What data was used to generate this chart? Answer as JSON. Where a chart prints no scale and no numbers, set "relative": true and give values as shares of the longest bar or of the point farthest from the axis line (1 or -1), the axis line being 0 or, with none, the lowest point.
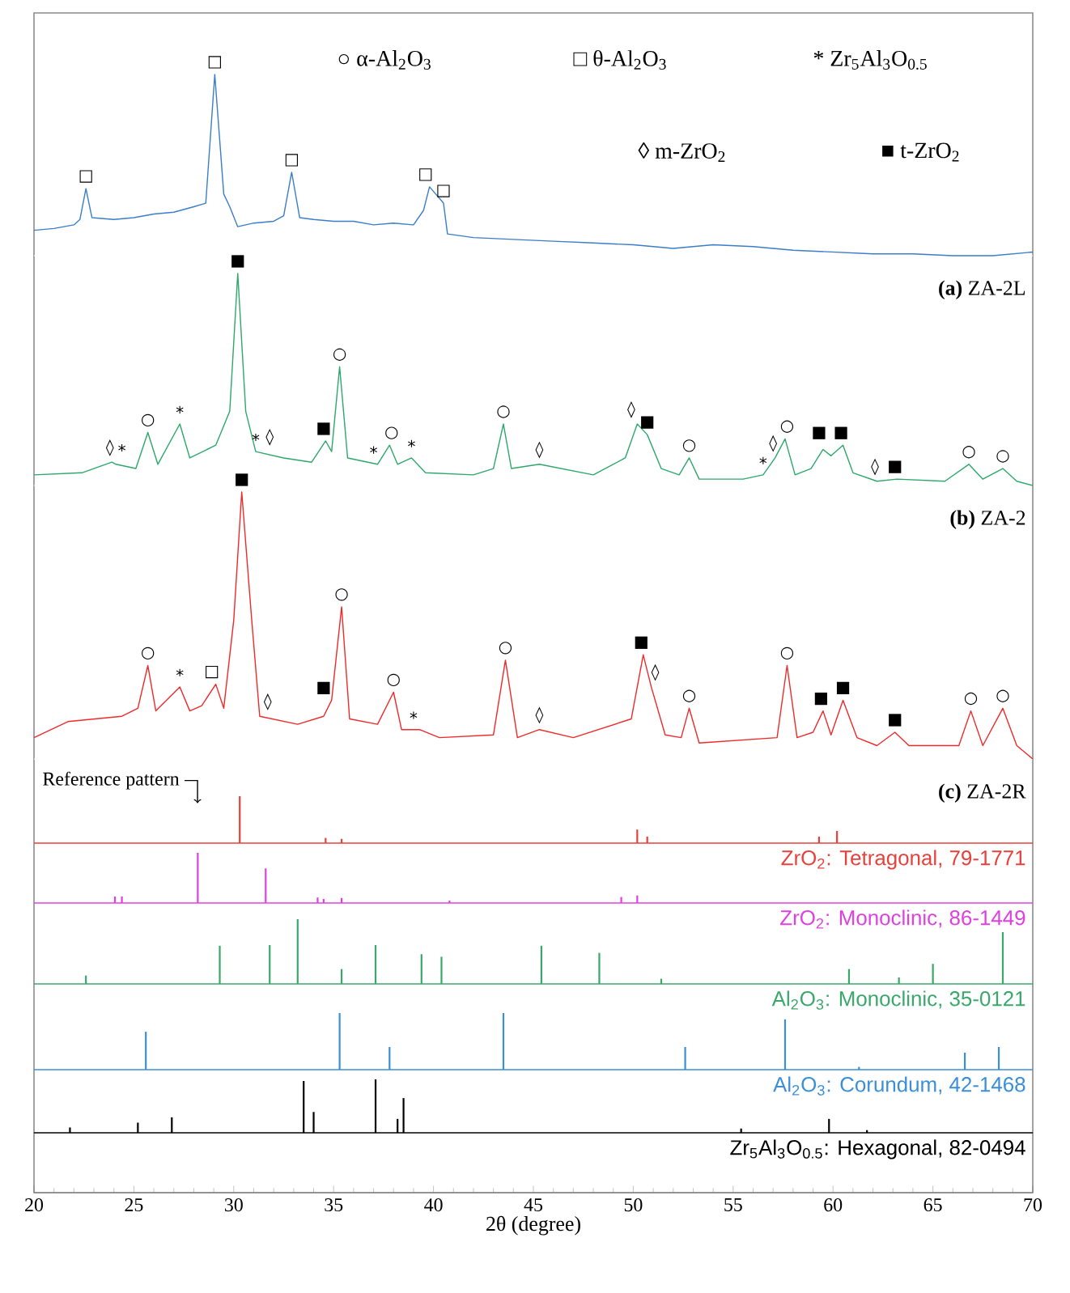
{
  "chart_data": [
    {
      "type": "line",
      "title": "**(a)** ZA-2L",
      "relative": true,
      "xlim": [
        20,
        70
      ],
      "tick_labels": false,
      "color": "#3a7dc9",
      "x": [
        20,
        21,
        22,
        22.3,
        22.6,
        22.9,
        24,
        25,
        26,
        27,
        28,
        28.6,
        29.05,
        29.5,
        29.8,
        30.2,
        31,
        32,
        32.5,
        32.9,
        33.3,
        34,
        35,
        36,
        37,
        38,
        39,
        39.5,
        39.8,
        40.5,
        40.7,
        42,
        44,
        46,
        48,
        50,
        52,
        54,
        56,
        58,
        60,
        62,
        64,
        66,
        68,
        70
      ],
      "values": [
        0.14,
        0.15,
        0.17,
        0.2,
        0.37,
        0.21,
        0.2,
        0.21,
        0.23,
        0.24,
        0.27,
        0.29,
        1,
        0.34,
        0.27,
        0.16,
        0.18,
        0.19,
        0.22,
        0.46,
        0.21,
        0.2,
        0.19,
        0.19,
        0.17,
        0.18,
        0.17,
        0.25,
        0.38,
        0.29,
        0.12,
        0.1,
        0.09,
        0.08,
        0.07,
        0.06,
        0.04,
        0.06,
        0.05,
        0.03,
        0.02,
        0.01,
        0.01,
        0,
        0,
        0.02
      ],
      "annotations": [
        "○ α-Al$_{2}$O$_{3}$",
        "□ θ-Al$_{2}$O$_{3}$",
        "* Zr$_{5}$Al$_{3}$O$_{0.5}$",
        "◊ m-ZrO$_{2}$",
        "■ t-ZrO$_{2}$",
        {
          "text": "□",
          "x": 22.6,
          "y": 0.37
        },
        {
          "text": "□",
          "x": 29.05,
          "y": 1
        },
        {
          "text": "□",
          "x": 32.9,
          "y": 0.46
        },
        {
          "text": "□",
          "x": 39.6,
          "y": 0.38
        },
        {
          "text": "□",
          "x": 40.5,
          "y": 0.29
        }
      ]
    },
    {
      "type": "line",
      "title": "**(b)** ZA-2",
      "relative": true,
      "xlim": [
        20,
        70
      ],
      "tick_labels": false,
      "color": "#2ca86a",
      "x": [
        20,
        22.4,
        23.9,
        24.1,
        25.1,
        25.7,
        26.2,
        27.3,
        27.8,
        29.1,
        29.8,
        30.2,
        30.6,
        31.1,
        32.5,
        33.9,
        34.6,
        34.9,
        35.3,
        35.7,
        37.2,
        37.8,
        38.2,
        38.9,
        39.6,
        42,
        43,
        43.5,
        43.9,
        45.3,
        48,
        49.6,
        50.2,
        50.7,
        51.4,
        52.3,
        52.8,
        53.3,
        55.5,
        56.5,
        57.1,
        57.6,
        58.1,
        58.9,
        59.5,
        59.9,
        60.5,
        61,
        62.2,
        63.2,
        65.6,
        66.8,
        67.5,
        68.5,
        69.2,
        70
      ],
      "values": [
        0.05,
        0.06,
        0.11,
        0.1,
        0.08,
        0.25,
        0.1,
        0.29,
        0.13,
        0.19,
        0.35,
        1,
        0.35,
        0.16,
        0.13,
        0.11,
        0.21,
        0.16,
        0.56,
        0.13,
        0.1,
        0.19,
        0.1,
        0.13,
        0.06,
        0.05,
        0.08,
        0.29,
        0.08,
        0.1,
        0.05,
        0.13,
        0.29,
        0.24,
        0.08,
        0.05,
        0.13,
        0.03,
        0.03,
        0.05,
        0.13,
        0.22,
        0.05,
        0.08,
        0.17,
        0.14,
        0.19,
        0.06,
        0.02,
        0.03,
        0.02,
        0.1,
        0.03,
        0.08,
        0.02,
        0
      ],
      "annotations": [
        {
          "text": "◊",
          "x": 23.8,
          "y": 0.11
        },
        {
          "text": "*",
          "x": 24.4,
          "y": 0.11
        },
        {
          "text": "○",
          "x": 25.7,
          "y": 0.25
        },
        {
          "text": "*",
          "x": 27.3,
          "y": 0.29
        },
        {
          "text": "■",
          "x": 30.2,
          "y": 1
        },
        {
          "text": "*",
          "x": 31.1,
          "y": 0.16
        },
        {
          "text": "◊",
          "x": 31.8,
          "y": 0.16
        },
        {
          "text": "■",
          "x": 34.5,
          "y": 0.21
        },
        {
          "text": "○",
          "x": 35.3,
          "y": 0.56
        },
        {
          "text": "*",
          "x": 37.0,
          "y": 0.1
        },
        {
          "text": "○",
          "x": 37.9,
          "y": 0.19
        },
        {
          "text": "*",
          "x": 38.9,
          "y": 0.13
        },
        {
          "text": "○",
          "x": 43.5,
          "y": 0.29
        },
        {
          "text": "◊",
          "x": 45.3,
          "y": 0.1
        },
        {
          "text": "◊",
          "x": 49.9,
          "y": 0.29
        },
        {
          "text": "■",
          "x": 50.7,
          "y": 0.24
        },
        {
          "text": "○",
          "x": 52.8,
          "y": 0.13
        },
        {
          "text": "*",
          "x": 56.5,
          "y": 0.05
        },
        {
          "text": "◊",
          "x": 57.0,
          "y": 0.13
        },
        {
          "text": "○",
          "x": 57.7,
          "y": 0.22
        },
        {
          "text": "■",
          "x": 59.3,
          "y": 0.19
        },
        {
          "text": "■",
          "x": 60.4,
          "y": 0.19
        },
        {
          "text": "◊",
          "x": 62.1,
          "y": 0.02
        },
        {
          "text": "■",
          "x": 63.1,
          "y": 0.03
        },
        {
          "text": "○",
          "x": 66.8,
          "y": 0.1
        },
        {
          "text": "○",
          "x": 68.5,
          "y": 0.08
        }
      ]
    },
    {
      "type": "line",
      "title": "**(c)** ZA-2R",
      "relative": true,
      "xlim": [
        20,
        70
      ],
      "tick_labels": false,
      "color": "#ee2a2a",
      "x": [
        20,
        21.7,
        24.4,
        25.2,
        25.7,
        26.1,
        27.3,
        27.8,
        28.4,
        29.1,
        29.5,
        30,
        30.4,
        30.9,
        31.3,
        33.2,
        34.5,
        34.9,
        35.4,
        35.8,
        37.2,
        38,
        38.4,
        39.3,
        40.3,
        43,
        43.6,
        44.2,
        45.3,
        47,
        49.9,
        50.5,
        50.9,
        51.6,
        52.4,
        52.8,
        53.3,
        57.2,
        57.7,
        58.2,
        59,
        59.5,
        59.9,
        60.5,
        61.2,
        62.2,
        63.1,
        63.8,
        66.3,
        66.9,
        67.5,
        68.5,
        69.2,
        70
      ],
      "values": [
        0.08,
        0.14,
        0.16,
        0.19,
        0.35,
        0.18,
        0.27,
        0.18,
        0.2,
        0.28,
        0.19,
        0.52,
        1,
        0.52,
        0.16,
        0.13,
        0.16,
        0.22,
        0.57,
        0.15,
        0.13,
        0.25,
        0.11,
        0.11,
        0.08,
        0.09,
        0.37,
        0.08,
        0.11,
        0.08,
        0.15,
        0.39,
        0.27,
        0.09,
        0.08,
        0.19,
        0.06,
        0.08,
        0.35,
        0.08,
        0.1,
        0.18,
        0.09,
        0.22,
        0.08,
        0.05,
        0.1,
        0.05,
        0.05,
        0.18,
        0.05,
        0.19,
        0.05,
        0
      ],
      "annotations": [
        {
          "text": "○",
          "x": 25.7,
          "y": 0.35
        },
        {
          "text": "*",
          "x": 27.3,
          "y": 0.27
        },
        {
          "text": "□",
          "x": 28.9,
          "y": 0.28
        },
        {
          "text": "■",
          "x": 30.4,
          "y": 1
        },
        {
          "text": "◊",
          "x": 31.7,
          "y": 0.16
        },
        {
          "text": "■",
          "x": 34.5,
          "y": 0.22
        },
        {
          "text": "○",
          "x": 35.4,
          "y": 0.57
        },
        {
          "text": "○",
          "x": 38.0,
          "y": 0.25
        },
        {
          "text": "*",
          "x": 39.0,
          "y": 0.11
        },
        {
          "text": "○",
          "x": 43.6,
          "y": 0.37
        },
        {
          "text": "◊",
          "x": 45.3,
          "y": 0.11
        },
        {
          "text": "■",
          "x": 50.4,
          "y": 0.39
        },
        {
          "text": "◊",
          "x": 51.1,
          "y": 0.27
        },
        {
          "text": "○",
          "x": 52.8,
          "y": 0.19
        },
        {
          "text": "○",
          "x": 57.7,
          "y": 0.35
        },
        {
          "text": "■",
          "x": 59.4,
          "y": 0.18
        },
        {
          "text": "■",
          "x": 60.5,
          "y": 0.22
        },
        {
          "text": "■",
          "x": 63.1,
          "y": 0.1
        },
        {
          "text": "○",
          "x": 66.9,
          "y": 0.18
        },
        {
          "text": "○",
          "x": 68.5,
          "y": 0.19
        }
      ]
    },
    {
      "type": "bar",
      "title": "ZrO$_{2}$: Tetragonal, 79-1771",
      "relative": true,
      "xlim": [
        20,
        70
      ],
      "tick_labels": false,
      "color": "#e8413c",
      "x": [
        30.3,
        34.6,
        35.4,
        50.2,
        50.7,
        59.3,
        60.2
      ],
      "values": [
        1,
        0.11,
        0.09,
        0.29,
        0.14,
        0.14,
        0.26
      ],
      "annotations": [
        "Reference pattern"
      ]
    },
    {
      "type": "bar",
      "title": "ZrO$_{2}$: Monoclinic, 86-1449",
      "relative": true,
      "xlim": [
        20,
        70
      ],
      "tick_labels": false,
      "color": "#e040e0",
      "x": [
        24.05,
        24.4,
        28.2,
        31.6,
        34.2,
        34.5,
        35.4,
        40.8,
        49.4,
        50.2
      ],
      "values": [
        0.13,
        0.13,
        1,
        0.69,
        0.11,
        0.08,
        0.1,
        0.05,
        0.12,
        0.15
      ]
    },
    {
      "type": "bar",
      "title": "Al$_{2}$O$_{3}$: Monoclinic, 35-0121",
      "relative": true,
      "xlim": [
        20,
        70
      ],
      "tick_labels": false,
      "color": "#3aa86b",
      "x": [
        22.6,
        29.3,
        31.8,
        33.2,
        35.4,
        37.1,
        39.4,
        40.4,
        45.4,
        48.3,
        51.4,
        60.8,
        63.3,
        65.0,
        68.5
      ],
      "values": [
        0.13,
        0.59,
        0.6,
        1,
        0.23,
        0.6,
        0.46,
        0.42,
        0.59,
        0.48,
        0.08,
        0.23,
        0.1,
        0.31,
        0.8
      ]
    },
    {
      "type": "bar",
      "title": "Al$_{2}$O$_{3}$: Corundum, 42-1468",
      "relative": true,
      "xlim": [
        20,
        70
      ],
      "tick_labels": false,
      "color": "#3a8fd8",
      "x": [
        25.6,
        35.3,
        37.8,
        43.5,
        52.6,
        57.6,
        61.3,
        66.6,
        68.3
      ],
      "values": [
        0.67,
        1,
        0.4,
        1,
        0.4,
        0.89,
        0.05,
        0.3,
        0.4
      ]
    },
    {
      "type": "bar",
      "title": "Zr$_{5}$Al$_{3}$O$_{0.5}$: Hexagonal, 82-0494",
      "relative": true,
      "xlim": [
        20,
        70
      ],
      "tick_labels": "x",
      "color": "#000000",
      "xlabel": "2θ (degree)",
      "xticks": [
        20,
        25,
        30,
        35,
        40,
        45,
        50,
        55,
        60,
        65,
        70
      ],
      "x": [
        21.8,
        25.2,
        26.9,
        33.5,
        34.0,
        37.1,
        38.2,
        38.5,
        55.4,
        59.8,
        61.7
      ],
      "values": [
        0.1,
        0.19,
        0.29,
        0.97,
        0.39,
        1,
        0.26,
        0.65,
        0.08,
        0.26,
        0.05
      ]
    }
  ]
}
